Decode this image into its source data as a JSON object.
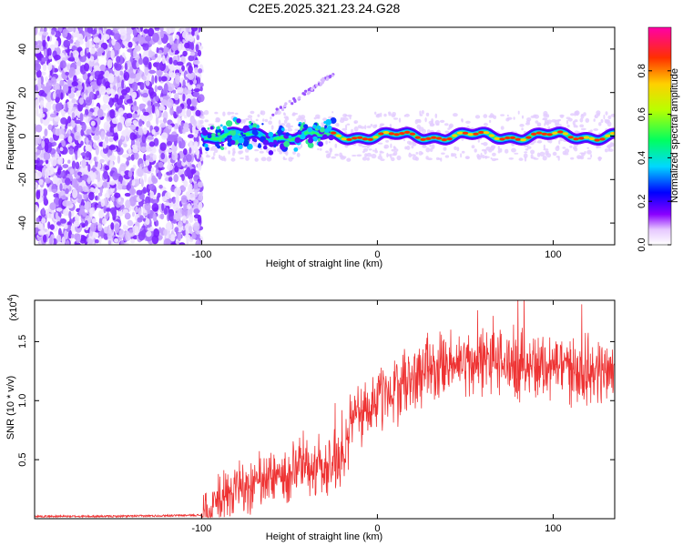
{
  "title": "C2E5.2025.321.23.24.G28",
  "chart_data": [
    {
      "type": "heatmap",
      "xlabel": "Height of straight line (km)",
      "ylabel": "Frequency (Hz)",
      "xlim": [
        -195,
        135
      ],
      "ylim": [
        -50,
        50
      ],
      "xticks": [
        -100,
        0,
        100
      ],
      "yticks": [
        -40,
        -20,
        0,
        20,
        40
      ],
      "colorbar": {
        "label": "Normalized spectral amplitude",
        "range": [
          0,
          1
        ],
        "ticks": [
          0.0,
          0.2,
          0.4,
          0.6,
          0.8
        ]
      },
      "grid": false,
      "tone_frequency_hz": 0,
      "signal_start_km": -100,
      "harmonic_streak": [
        [
          -60,
          10
        ],
        [
          -40,
          20
        ],
        [
          -25,
          29
        ]
      ]
    },
    {
      "type": "line",
      "xlabel": "Height of straight line (km)",
      "ylabel": "SNR (10 * v/v)",
      "y_multiplier": "(x10",
      "y_exponent": "4",
      "y_multiplier_close": ")",
      "xlim": [
        -195,
        135
      ],
      "ylim": [
        0,
        1.85
      ],
      "xticks": [
        -100,
        0,
        100
      ],
      "yticks": [
        0.5,
        1.0,
        1.5
      ],
      "grid": false,
      "legend": "none",
      "series": [
        {
          "color": "#ee3333",
          "x": [
            -195,
            -150,
            -100,
            -95,
            -90,
            -80,
            -70,
            -60,
            -50,
            -40,
            -30,
            -20,
            -15,
            -10,
            0,
            10,
            20,
            30,
            40,
            50,
            60,
            70,
            80,
            90,
            100,
            110,
            120,
            130,
            135
          ],
          "y": [
            0.02,
            0.02,
            0.03,
            0.05,
            0.15,
            0.25,
            0.28,
            0.35,
            0.38,
            0.45,
            0.45,
            0.5,
            0.78,
            0.9,
            1.0,
            1.1,
            1.18,
            1.25,
            1.3,
            1.32,
            1.33,
            1.32,
            1.3,
            1.3,
            1.3,
            1.28,
            1.25,
            1.25,
            1.3
          ]
        }
      ]
    }
  ]
}
